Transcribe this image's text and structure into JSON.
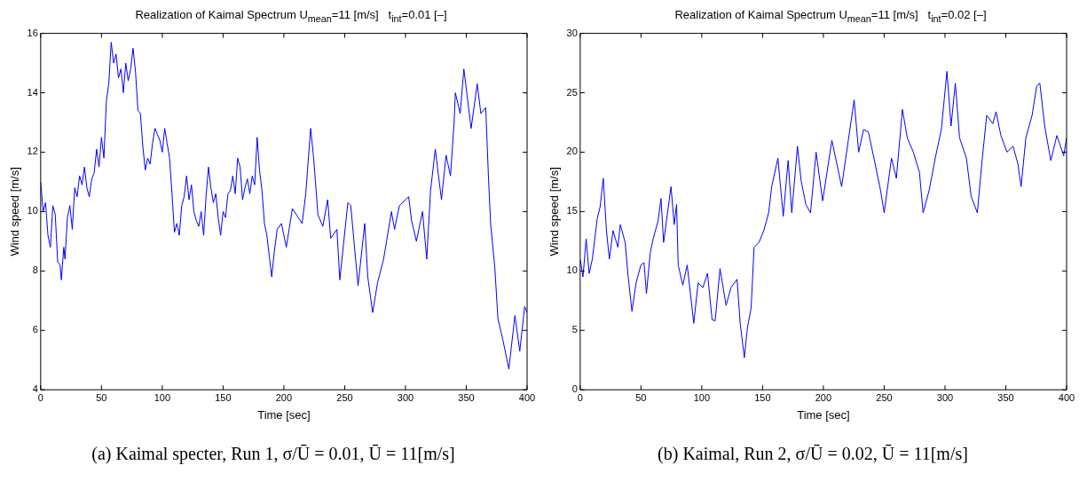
{
  "chart_data": [
    {
      "type": "line",
      "title": "Realization of Kaimal Spectrum U$_{mean}$=11 [m/s]   t$_{int}$=0.01 [–]",
      "xlabel": "Time [sec]",
      "ylabel": "Wind speed [m/s]",
      "xlim": [
        0,
        400
      ],
      "ylim": [
        4,
        16
      ],
      "xticks": [
        0,
        50,
        100,
        150,
        200,
        250,
        300,
        350,
        400
      ],
      "yticks": [
        4,
        6,
        8,
        10,
        12,
        14,
        16
      ],
      "grid": false,
      "annotations": [
        "(a) Kaimal specter, Run 1, σ/Ū = 0.01, Ū = 11[m/s]"
      ],
      "x": [
        0,
        2,
        4,
        6,
        8,
        10,
        12,
        14,
        16,
        17,
        19,
        20,
        22,
        24,
        26,
        28,
        30,
        32,
        34,
        36,
        38,
        40,
        42,
        44,
        46,
        48,
        50,
        52,
        54,
        56,
        58,
        60,
        62,
        64,
        66,
        68,
        70,
        72,
        74,
        76,
        78,
        80,
        82,
        84,
        86,
        88,
        90,
        92,
        94,
        96,
        98,
        100,
        102,
        104,
        106,
        108,
        110,
        112,
        114,
        116,
        118,
        120,
        122,
        124,
        126,
        128,
        130,
        132,
        134,
        136,
        138,
        140,
        142,
        144,
        146,
        148,
        150,
        152,
        154,
        156,
        158,
        160,
        162,
        164,
        166,
        168,
        170,
        172,
        174,
        176,
        178,
        180,
        182,
        184,
        186,
        188,
        190,
        192,
        194.5,
        198,
        202,
        207,
        215,
        218,
        222,
        224.5,
        228,
        232,
        236,
        238.5,
        243.6,
        246,
        252.6,
        255,
        259,
        261,
        266.5,
        269,
        273,
        277,
        282,
        288.5,
        291,
        295,
        302.6,
        305,
        309,
        314,
        317.5,
        320.6,
        324.5,
        329.6,
        333.4,
        337,
        340,
        341,
        345,
        348,
        351.6,
        354,
        359,
        362,
        366,
        368.3,
        370,
        373.5,
        376,
        380,
        385,
        390,
        394,
        398,
        400
      ],
      "series": [
        {
          "color": "#0000ff",
          "values": [
            11,
            10,
            10.3,
            9.2,
            8.8,
            10.2,
            9.9,
            8.3,
            8.2,
            7.7,
            8.8,
            8.4,
            9.8,
            10.2,
            9.4,
            10.8,
            10.5,
            11.2,
            10.9,
            11.5,
            10.8,
            10.5,
            11.1,
            11.3,
            12.1,
            11.5,
            12.5,
            11.8,
            13.7,
            14.3,
            15.7,
            15,
            15.3,
            14.5,
            14.8,
            14,
            15,
            14.4,
            14.8,
            15.5,
            14.7,
            13.4,
            13.3,
            12.2,
            11.4,
            11.8,
            11.6,
            12.3,
            12.8,
            12.6,
            12.4,
            12,
            12.8,
            12.3,
            11.8,
            10.6,
            9.3,
            9.6,
            9.2,
            10.2,
            10.5,
            11.2,
            10.4,
            10.9,
            10,
            9.7,
            9.5,
            10,
            9.2,
            10.5,
            11.5,
            10.8,
            10.3,
            10.6,
            9.8,
            9.2,
            10,
            9.8,
            10.6,
            10.7,
            11.2,
            10.6,
            11.8,
            11.5,
            10.4,
            10.8,
            11.1,
            10.6,
            11.2,
            10.9,
            12.5,
            11.4,
            10.7,
            9.6,
            9.2,
            8.5,
            7.8,
            8.6,
            9.4,
            9.6,
            8.8,
            10.1,
            9.6,
            10.6,
            12.8,
            11.8,
            9.9,
            9.5,
            10.4,
            9.1,
            9.4,
            7.7,
            10.3,
            10.2,
            8.4,
            7.5,
            9.6,
            7.8,
            6.6,
            7.6,
            8.4,
            10,
            9.4,
            10.2,
            10.5,
            9.7,
            9,
            10,
            8.4,
            10.7,
            12.1,
            10.4,
            11.9,
            11.2,
            13,
            14,
            13.3,
            14.8,
            13.6,
            12.8,
            14.3,
            13.3,
            13.5,
            11.1,
            9.6,
            8.1,
            6.4,
            5.7,
            4.7,
            6.5,
            5.3,
            6.8,
            6.6
          ]
        }
      ]
    },
    {
      "type": "line",
      "title": "Realization of Kaimal Spectrum U$_{mean}$=11 [m/s]   t$_{int}$=0.02 [–]",
      "xlabel": "Time [sec]",
      "ylabel": "Wind speed [m/s]",
      "xlim": [
        0,
        400
      ],
      "ylim": [
        0,
        30
      ],
      "xticks": [
        0,
        50,
        100,
        150,
        200,
        250,
        300,
        350,
        400
      ],
      "yticks": [
        0,
        5,
        10,
        15,
        20,
        25,
        30
      ],
      "grid": false,
      "annotations": [
        "(b) Kaimal, Run 2, σ/Ū = 0.02, Ū = 11[m/s]"
      ],
      "x": [
        0,
        2.3,
        4.9,
        7.4,
        10,
        14,
        16.4,
        19,
        21.6,
        24,
        27,
        31,
        33,
        37,
        39.5,
        42.6,
        46,
        49.9,
        52.5,
        54.5,
        57.6,
        60,
        64,
        66.5,
        68.6,
        71.7,
        74.7,
        77.3,
        79.3,
        80.6,
        84.4,
        88,
        93.4,
        97,
        100.9,
        104.7,
        108.5,
        111,
        115,
        120,
        124,
        129,
        131.6,
        135,
        137.5,
        140.6,
        143,
        147,
        151,
        155,
        157.5,
        162.6,
        167,
        171,
        174,
        178.7,
        181.7,
        185.6,
        189.4,
        194,
        199.4,
        207,
        215,
        221.5,
        225.3,
        229,
        233,
        237,
        242,
        247,
        250,
        256,
        260,
        265,
        269,
        274,
        279,
        282,
        287,
        292,
        297,
        301.6,
        305,
        308.5,
        312,
        317.6,
        321.5,
        326.6,
        330.5,
        334.3,
        339.4,
        342,
        346,
        351,
        356,
        360,
        362.6,
        366.5,
        371.6,
        375.5,
        378,
        382,
        387,
        392,
        397.6,
        400
      ],
      "series": [
        {
          "color": "#0000ff",
          "values": [
            11,
            9.5,
            12.7,
            9.8,
            11,
            14.4,
            15.4,
            17.8,
            13.4,
            11,
            13.4,
            12,
            13.9,
            12.4,
            9.5,
            6.6,
            9,
            10.5,
            10.7,
            8.1,
            11.5,
            12.7,
            14.2,
            16.1,
            12.4,
            14.8,
            17.1,
            13.9,
            15.6,
            10.5,
            8.8,
            10.5,
            5.6,
            9,
            8.6,
            9.8,
            5.9,
            5.8,
            10.2,
            7.1,
            8.6,
            9.3,
            5.6,
            2.7,
            5.2,
            6.9,
            12,
            12.4,
            13.4,
            14.9,
            17.1,
            19.5,
            14.6,
            19.3,
            14.9,
            20.5,
            17.6,
            15.6,
            14.9,
            20,
            15.9,
            21,
            17.1,
            21.7,
            24.4,
            20,
            21.9,
            21.7,
            19.3,
            16.8,
            14.9,
            19.5,
            17.8,
            23.6,
            21.2,
            20,
            18.3,
            14.9,
            16.8,
            19.5,
            21.9,
            26.8,
            22.2,
            25.8,
            21.2,
            19.5,
            16.3,
            14.9,
            19.3,
            23.1,
            22.4,
            23.4,
            21.4,
            20,
            20.5,
            19,
            17.1,
            21.2,
            23.1,
            25.6,
            25.8,
            22.2,
            19.3,
            21.4,
            19.7,
            21.2
          ]
        }
      ]
    }
  ]
}
